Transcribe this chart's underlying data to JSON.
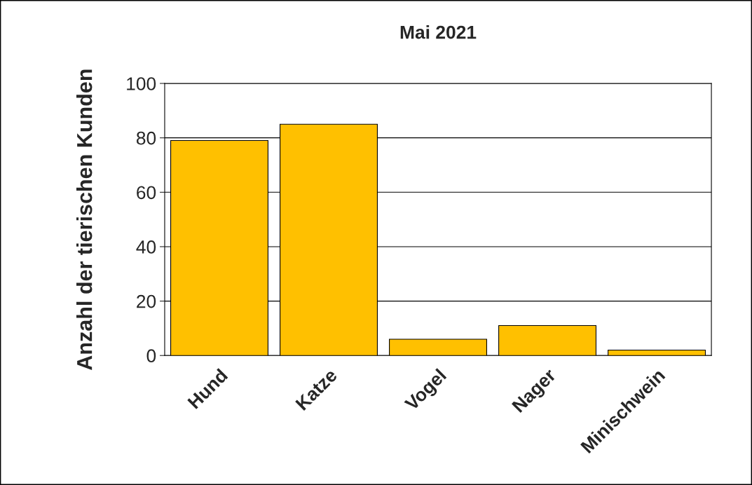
{
  "chart_data": {
    "type": "bar",
    "title": "Mai 2021",
    "ylabel": "Anzahl der tierischen Kunden",
    "categories": [
      "Hund",
      "Katze",
      "Vogel",
      "Nager",
      "Minischwein"
    ],
    "values": [
      79,
      85,
      6,
      11,
      2
    ],
    "color": "#ffc000",
    "ylim": [
      0,
      100
    ],
    "yticks": [
      0,
      20,
      40,
      60,
      80,
      100
    ],
    "grid": "y",
    "legend": false
  }
}
